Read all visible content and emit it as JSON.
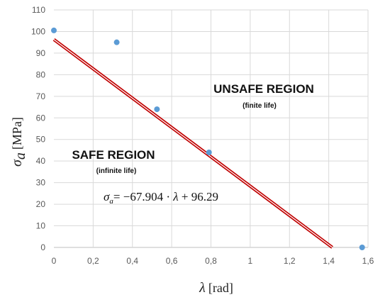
{
  "chart_data": {
    "type": "scatter",
    "xlabel": {
      "symbol": "λ",
      "unit": "[rad]"
    },
    "ylabel": {
      "symbol": "σ",
      "subscript": "a",
      "unit": "[MPa]"
    },
    "xlim": [
      0,
      1.6
    ],
    "ylim": [
      0,
      110
    ],
    "x_ticks": [
      0,
      0.2,
      0.4,
      0.6,
      0.8,
      1.0,
      1.2,
      1.4,
      1.6
    ],
    "x_tick_labels": [
      "0",
      "0,2",
      "0,4",
      "0,6",
      "0,8",
      "1",
      "1,2",
      "1,4",
      "1,6"
    ],
    "y_ticks": [
      0,
      10,
      20,
      30,
      40,
      50,
      60,
      70,
      80,
      90,
      100,
      110
    ],
    "y_tick_labels": [
      "0",
      "10",
      "20",
      "30",
      "40",
      "50",
      "60",
      "70",
      "80",
      "90",
      "100",
      "110"
    ],
    "grid": true,
    "series": [
      {
        "type": "scatter",
        "color": "#5b9bd5",
        "points": [
          {
            "x": 0.0,
            "y": 100.5
          },
          {
            "x": 0.32,
            "y": 95
          },
          {
            "x": 0.525,
            "y": 64
          },
          {
            "x": 0.79,
            "y": 44
          },
          {
            "x": 1.57,
            "y": 0
          }
        ]
      },
      {
        "type": "line",
        "color": "#c00000",
        "slope": -67.904,
        "intercept": 96.29,
        "x_range": [
          0,
          1.418
        ]
      }
    ],
    "annotations": {
      "unsafe_title": "UNSAFE REGION",
      "unsafe_sub": "(finite life)",
      "safe_title": "SAFE REGION",
      "safe_sub": "(infinite life)",
      "equation": {
        "lhs_symbol": "σ",
        "lhs_subscript": "a",
        "rhs_prefix": "= −67.904 · ",
        "rhs_var": "λ",
        "rhs_suffix": " + 96.29"
      }
    }
  }
}
